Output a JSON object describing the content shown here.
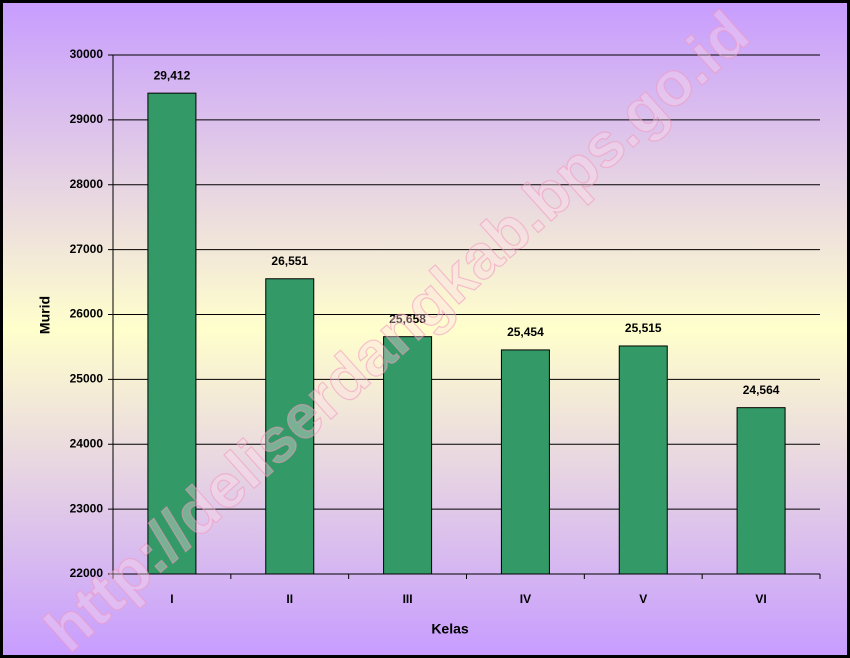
{
  "chart_data": {
    "type": "bar",
    "categories": [
      "I",
      "II",
      "III",
      "IV",
      "V",
      "VI"
    ],
    "values": [
      29412,
      26551,
      25658,
      25454,
      25515,
      24564
    ],
    "value_labels": [
      "29,412",
      "26,551",
      "25,658",
      "25,454",
      "25,515",
      "24,564"
    ],
    "color": "#339966",
    "ylim": [
      22000,
      30000
    ],
    "yticks": [
      22000,
      23000,
      24000,
      25000,
      26000,
      27000,
      28000,
      29000,
      30000
    ],
    "grid": true,
    "xlabel": "Kelas",
    "ylabel": "Murid",
    "watermark": "http://deliserdangkab.bps.go.id"
  }
}
